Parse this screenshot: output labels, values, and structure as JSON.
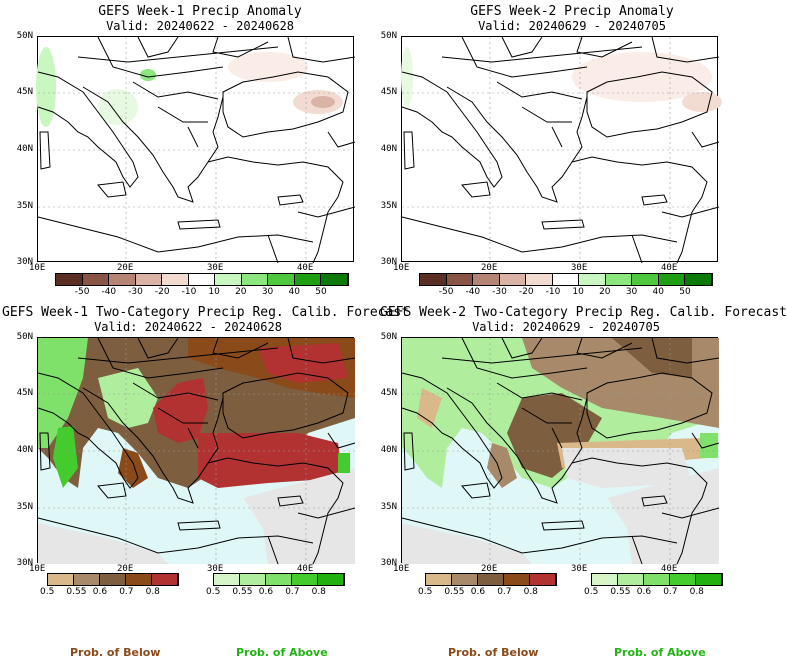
{
  "panels": [
    {
      "title": "GEFS Week-1 Precip Anomaly",
      "valid": "Valid: 20240622 - 20240628"
    },
    {
      "title": "GEFS Week-2 Precip Anomaly",
      "valid": "Valid: 20240629 - 20240705"
    },
    {
      "title": "GEFS Week-1 Two-Category Precip Reg. Calib. Forecast",
      "valid": "Valid: 20240622 - 20240628"
    },
    {
      "title": "GEFS Week-2 Two-Category Precip Reg. Calib. Forecast",
      "valid": "Valid: 20240629 - 20240705"
    }
  ],
  "lat_labels": [
    "50N",
    "45N",
    "40N",
    "35N",
    "30N"
  ],
  "lon_labels": [
    "10E",
    "20E",
    "30E",
    "40E"
  ],
  "anomaly_scale": {
    "labels": [
      "-50",
      "-40",
      "-30",
      "-20",
      "-10",
      "10",
      "20",
      "30",
      "40",
      "50"
    ],
    "colors": [
      "#5a2e22",
      "#8a5444",
      "#b58474",
      "#dbb3a6",
      "#f2dcd2",
      "#ffffff",
      "#c8f7c0",
      "#8ce67e",
      "#4fc83f",
      "#1f9e14",
      "#0b7a08"
    ]
  },
  "prob_below_scale": {
    "labels": [
      "0.5",
      "0.55",
      "0.6",
      "0.7",
      "0.8"
    ],
    "colors": [
      "#d9b98a",
      "#a88a6a",
      "#7d5e3e",
      "#8a4a1a",
      "#b23232"
    ]
  },
  "prob_above_scale": {
    "labels": [
      "0.5",
      "0.55",
      "0.6",
      "0.7",
      "0.8"
    ],
    "colors": [
      "#d6f5c8",
      "#b0ee9e",
      "#7fe06a",
      "#44cc2e",
      "#20b010"
    ]
  },
  "captions": {
    "below": "Prob. of Below",
    "above": "Prob. of Above"
  },
  "colors": {
    "land_light": "#ffffff",
    "sea_prob": "#dff7f7",
    "gray": "#e6e6e6"
  }
}
